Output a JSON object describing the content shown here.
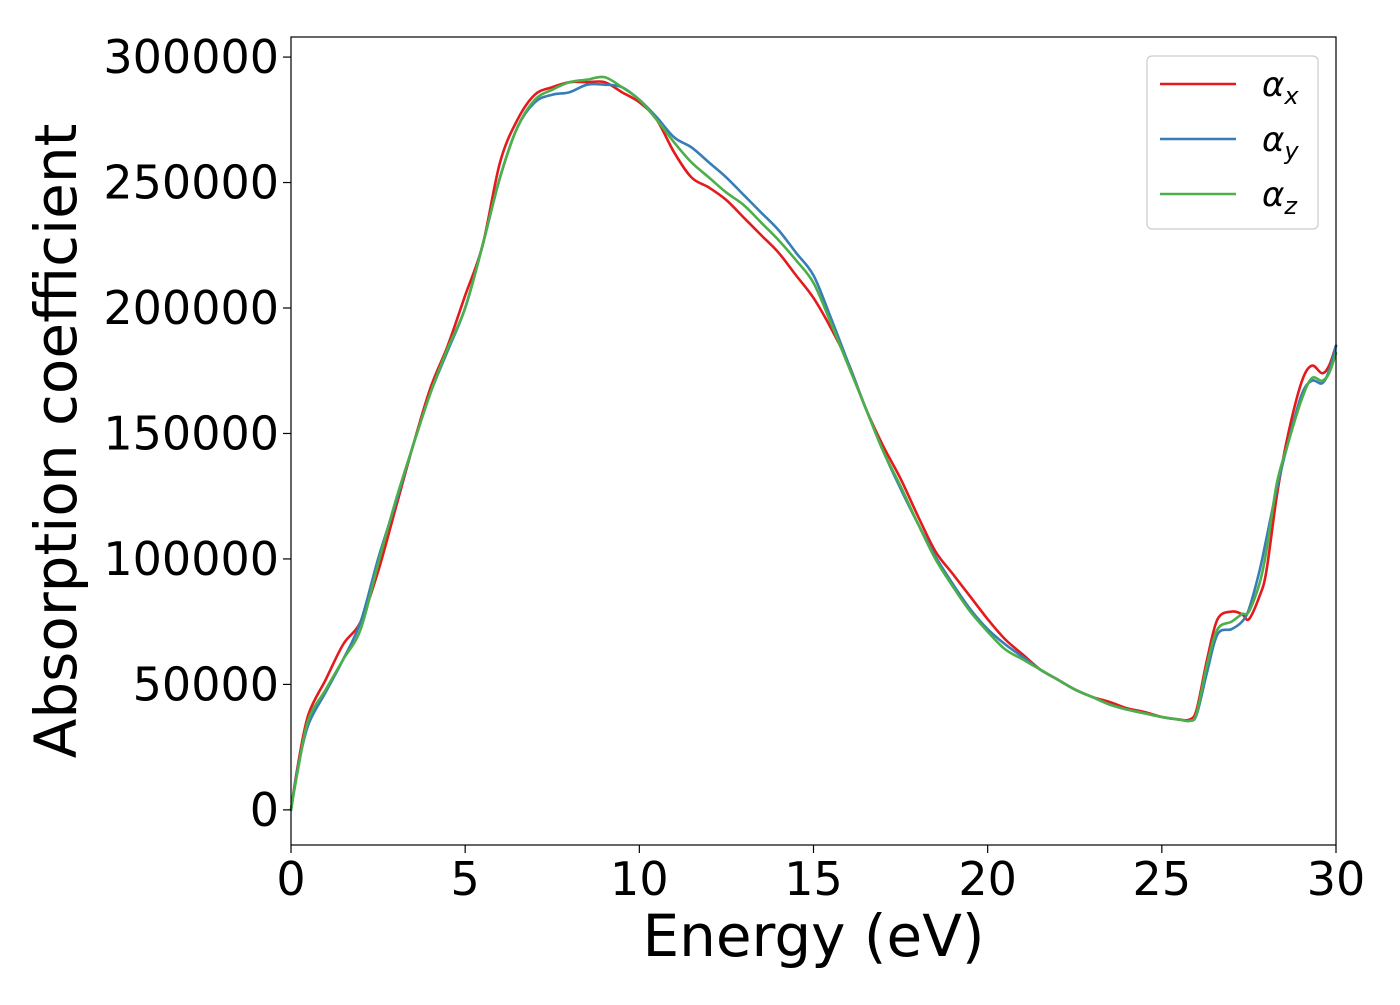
{
  "chart_data": {
    "type": "line",
    "title": "",
    "xlabel": "Energy (eV)",
    "ylabel": "Absorption coefficient",
    "xlim": [
      0,
      30
    ],
    "ylim": [
      -14000,
      308000
    ],
    "xticks": [
      0,
      5,
      10,
      15,
      20,
      25,
      30
    ],
    "xtick_labels": [
      "0",
      "5",
      "10",
      "15",
      "20",
      "25",
      "30"
    ],
    "yticks": [
      0,
      50000,
      100000,
      150000,
      200000,
      250000,
      300000
    ],
    "ytick_labels": [
      "0",
      "50000",
      "100000",
      "150000",
      "200000",
      "250000",
      "300000"
    ],
    "grid": false,
    "legend_position": "top-right",
    "x": [
      0.0,
      0.2,
      0.5,
      1.0,
      1.5,
      2.0,
      2.5,
      3.0,
      3.5,
      4.0,
      4.5,
      5.0,
      5.5,
      6.0,
      6.5,
      7.0,
      7.5,
      8.0,
      8.5,
      9.0,
      9.5,
      10.0,
      10.5,
      11.0,
      11.5,
      12.0,
      12.5,
      13.0,
      13.5,
      14.0,
      14.5,
      15.0,
      15.5,
      16.0,
      16.5,
      17.0,
      17.5,
      18.0,
      18.5,
      19.0,
      19.5,
      20.0,
      20.5,
      21.0,
      21.5,
      22.0,
      22.5,
      23.0,
      23.5,
      24.0,
      24.5,
      25.0,
      25.5,
      25.8,
      26.0,
      26.3,
      26.6,
      27.0,
      27.3,
      27.5,
      27.8,
      28.0,
      28.3,
      28.6,
      29.0,
      29.3,
      29.6,
      29.8,
      30.0
    ],
    "series": [
      {
        "name": "α_x",
        "name_base": "α",
        "name_sub": "x",
        "color": "#e41a1c",
        "values": [
          0,
          18000,
          38000,
          52000,
          66000,
          75000,
          95000,
          120000,
          145000,
          168000,
          185000,
          205000,
          225000,
          258000,
          275000,
          285000,
          288000,
          290000,
          290000,
          290000,
          286000,
          282000,
          275000,
          262000,
          252000,
          248000,
          243000,
          236000,
          229000,
          222000,
          213000,
          204000,
          192000,
          178000,
          160000,
          145000,
          132000,
          117000,
          103000,
          94000,
          85000,
          76000,
          68000,
          62000,
          56000,
          52000,
          48000,
          45000,
          43000,
          40500,
          39000,
          37000,
          36000,
          36000,
          40000,
          60000,
          76000,
          79000,
          78000,
          76000,
          85000,
          95000,
          125000,
          148000,
          170000,
          177000,
          174000,
          177000,
          185000
        ]
      },
      {
        "name": "α_y",
        "name_base": "α",
        "name_sub": "y",
        "color": "#377eb8",
        "values": [
          0,
          17000,
          34000,
          47000,
          60000,
          75000,
          100000,
          122000,
          145000,
          166000,
          183000,
          200000,
          225000,
          252000,
          272000,
          282000,
          285000,
          286000,
          289000,
          289000,
          288000,
          283000,
          276000,
          268000,
          264000,
          258000,
          252000,
          245000,
          238000,
          231000,
          222000,
          213000,
          196000,
          178000,
          160000,
          143000,
          128000,
          114000,
          101000,
          90000,
          80000,
          72000,
          66000,
          61000,
          56000,
          52000,
          48000,
          45000,
          42000,
          40000,
          38500,
          37000,
          36000,
          35500,
          38000,
          55000,
          70000,
          72000,
          75000,
          80000,
          95000,
          108000,
          128000,
          145000,
          165000,
          171000,
          170000,
          175000,
          185000
        ]
      },
      {
        "name": "α_z",
        "name_base": "α",
        "name_sub": "z",
        "color": "#4daf4a",
        "values": [
          0,
          16000,
          36000,
          48000,
          60000,
          72000,
          98000,
          123000,
          145000,
          166000,
          184000,
          200000,
          225000,
          252000,
          272000,
          283000,
          287000,
          290000,
          291000,
          292000,
          288000,
          283000,
          275000,
          266000,
          258000,
          252000,
          246000,
          241000,
          234000,
          227000,
          219000,
          210000,
          194000,
          177000,
          160000,
          143000,
          129000,
          114000,
          100000,
          89000,
          79000,
          71000,
          64000,
          60000,
          56000,
          52000,
          48000,
          45000,
          42000,
          40000,
          38500,
          37000,
          36000,
          35500,
          38500,
          58000,
          72000,
          75000,
          78000,
          79000,
          90000,
          103000,
          130000,
          145000,
          163000,
          172000,
          171000,
          174000,
          182000
        ]
      }
    ]
  }
}
